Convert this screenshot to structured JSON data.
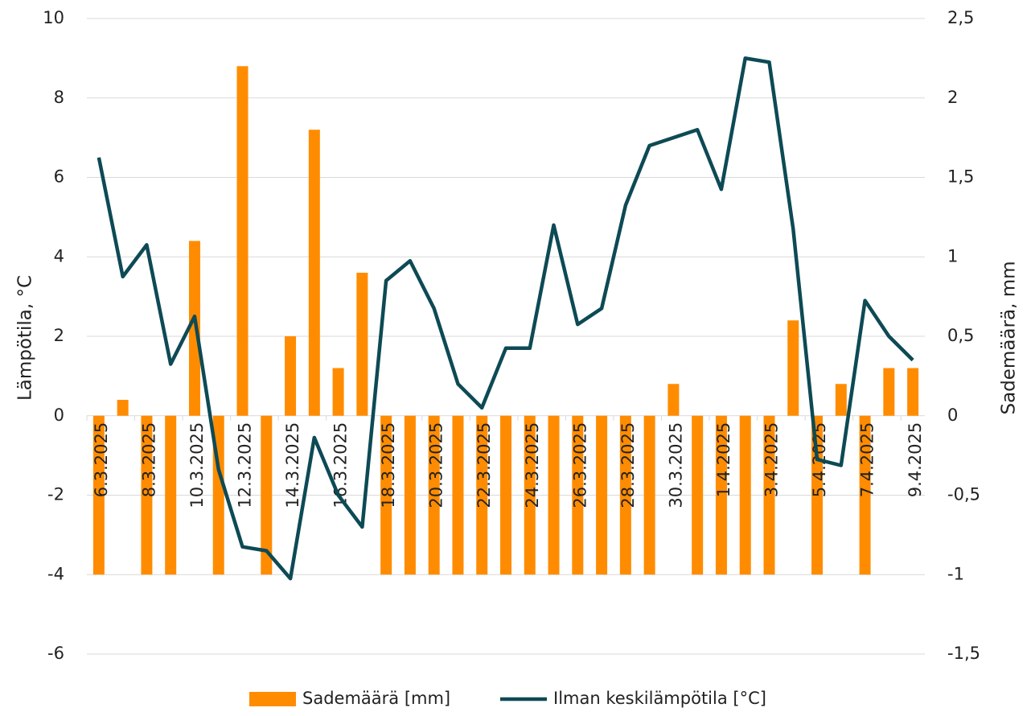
{
  "chart_data": {
    "type": "bar_line",
    "categories": [
      "6.3.2025",
      null,
      "8.3.2025",
      null,
      "10.3.2025",
      null,
      "12.3.2025",
      null,
      "14.3.2025",
      null,
      "16.3.2025",
      null,
      "18.3.2025",
      null,
      "20.3.2025",
      null,
      "22.3.2025",
      null,
      "24.3.2025",
      null,
      "26.3.2025",
      null,
      "28.3.2025",
      null,
      "30.3.2025",
      null,
      "1.4.2025",
      null,
      "3.4.2025",
      null,
      "5.4.2025",
      null,
      "7.4.2025",
      null,
      "9.4.2025"
    ],
    "series": [
      {
        "name": "Sademäärä [mm]",
        "type": "bar",
        "axis": "y2",
        "color": "#ff8c00",
        "values": [
          -1,
          0.1,
          -1,
          -1,
          1.1,
          -1,
          2.2,
          -1,
          0.5,
          1.8,
          0.3,
          0.9,
          -1,
          -1,
          -1,
          -1,
          -1,
          -1,
          -1,
          -1,
          -1,
          -1,
          -1,
          -1,
          0.2,
          -1,
          -1,
          -1,
          -1,
          0.6,
          -1,
          0.2,
          -1,
          0.3,
          0.3
        ]
      },
      {
        "name": "Ilman keskilämpötila [°C]",
        "type": "line",
        "axis": "y",
        "color": "#0d4a55",
        "values": [
          6.5,
          3.5,
          4.3,
          1.3,
          2.5,
          -1.35,
          -3.3,
          -3.4,
          -4.1,
          -0.55,
          -2.0,
          -2.8,
          3.4,
          3.9,
          2.7,
          0.8,
          0.2,
          1.7,
          1.7,
          4.8,
          2.3,
          2.7,
          5.3,
          6.8,
          7.0,
          7.2,
          5.7,
          9.0,
          8.9,
          4.7,
          -1.1,
          -1.25,
          2.9,
          2.0,
          1.4
        ]
      }
    ],
    "ylabel": "Lämpötila, °C",
    "y2label": "Sademäärä, mm",
    "ylim": [
      -6,
      10
    ],
    "yticks": [
      -6,
      -4,
      -2,
      0,
      2,
      4,
      6,
      8,
      10
    ],
    "y2lim": [
      -1.5,
      2.5
    ],
    "y2ticks": [
      {
        "value": -1.5,
        "label": "-1,5"
      },
      -1,
      {
        "value": -0.5,
        "label": "-0,5"
      },
      0,
      {
        "value": 0.5,
        "label": "0,5"
      },
      1,
      {
        "value": 1.5,
        "label": "1,5"
      },
      2,
      {
        "value": 2.5,
        "label": "2,5"
      }
    ],
    "grid": true,
    "legend": "bottom"
  }
}
